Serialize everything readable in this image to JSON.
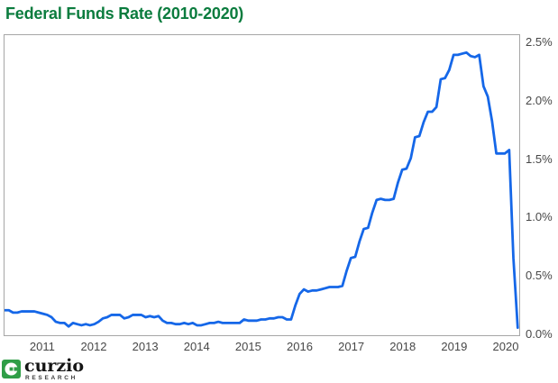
{
  "chart_data": {
    "type": "line",
    "title": "Federal Funds Rate (2010-2020)",
    "xlabel": "",
    "ylabel": "",
    "ylim": [
      0,
      2.5
    ],
    "x_domain": [
      2010.25,
      2020.28
    ],
    "grid": false,
    "legend": false,
    "y_axis_side": "right",
    "line_color": "#1567e8",
    "line_width": 2.8,
    "axis_text_color": "#474747",
    "plot_border_color": "#a6a6a6",
    "y_ticks": [
      {
        "v": 0.0,
        "label": "0.0%"
      },
      {
        "v": 0.5,
        "label": "0.5%"
      },
      {
        "v": 1.0,
        "label": "1.0%"
      },
      {
        "v": 1.5,
        "label": "1.5%"
      },
      {
        "v": 2.0,
        "label": "2.0%"
      },
      {
        "v": 2.5,
        "label": "2.5%"
      }
    ],
    "x_ticks": [
      {
        "v": 2011,
        "label": "2011"
      },
      {
        "v": 2012,
        "label": "2012"
      },
      {
        "v": 2013,
        "label": "2013"
      },
      {
        "v": 2014,
        "label": "2014"
      },
      {
        "v": 2015,
        "label": "2015"
      },
      {
        "v": 2016,
        "label": "2016"
      },
      {
        "v": 2017,
        "label": "2017"
      },
      {
        "v": 2018,
        "label": "2018"
      },
      {
        "v": 2019,
        "label": "2019"
      },
      {
        "v": 2020,
        "label": "2020"
      }
    ],
    "series": [
      {
        "name": "Federal Funds Rate",
        "x_start": 2010.25,
        "x_step_months": 1,
        "values": [
          0.2,
          0.2,
          0.18,
          0.18,
          0.19,
          0.19,
          0.19,
          0.19,
          0.18,
          0.17,
          0.16,
          0.14,
          0.1,
          0.09,
          0.09,
          0.06,
          0.09,
          0.08,
          0.07,
          0.08,
          0.07,
          0.08,
          0.1,
          0.13,
          0.14,
          0.16,
          0.16,
          0.16,
          0.13,
          0.14,
          0.16,
          0.16,
          0.16,
          0.14,
          0.15,
          0.14,
          0.15,
          0.11,
          0.09,
          0.09,
          0.08,
          0.08,
          0.09,
          0.08,
          0.09,
          0.07,
          0.07,
          0.08,
          0.09,
          0.09,
          0.1,
          0.09,
          0.09,
          0.09,
          0.09,
          0.09,
          0.12,
          0.11,
          0.11,
          0.11,
          0.12,
          0.12,
          0.13,
          0.13,
          0.14,
          0.14,
          0.12,
          0.12,
          0.24,
          0.34,
          0.38,
          0.36,
          0.37,
          0.37,
          0.38,
          0.39,
          0.4,
          0.4,
          0.4,
          0.41,
          0.54,
          0.65,
          0.66,
          0.79,
          0.9,
          0.91,
          1.04,
          1.15,
          1.16,
          1.15,
          1.15,
          1.16,
          1.3,
          1.41,
          1.42,
          1.51,
          1.69,
          1.7,
          1.82,
          1.91,
          1.91,
          1.95,
          2.19,
          2.2,
          2.27,
          2.4,
          2.4,
          2.41,
          2.42,
          2.39,
          2.38,
          2.4,
          2.13,
          2.04,
          1.83,
          1.55,
          1.55,
          1.55,
          1.58,
          0.65,
          0.05
        ]
      }
    ]
  },
  "title_color": "#0b7c3e",
  "logo": {
    "brand": "curzio",
    "subtitle": "RESEARCH",
    "icon": "curzio-c-icon",
    "icon_color": "#2f9e47",
    "brand_color": "#151515"
  }
}
